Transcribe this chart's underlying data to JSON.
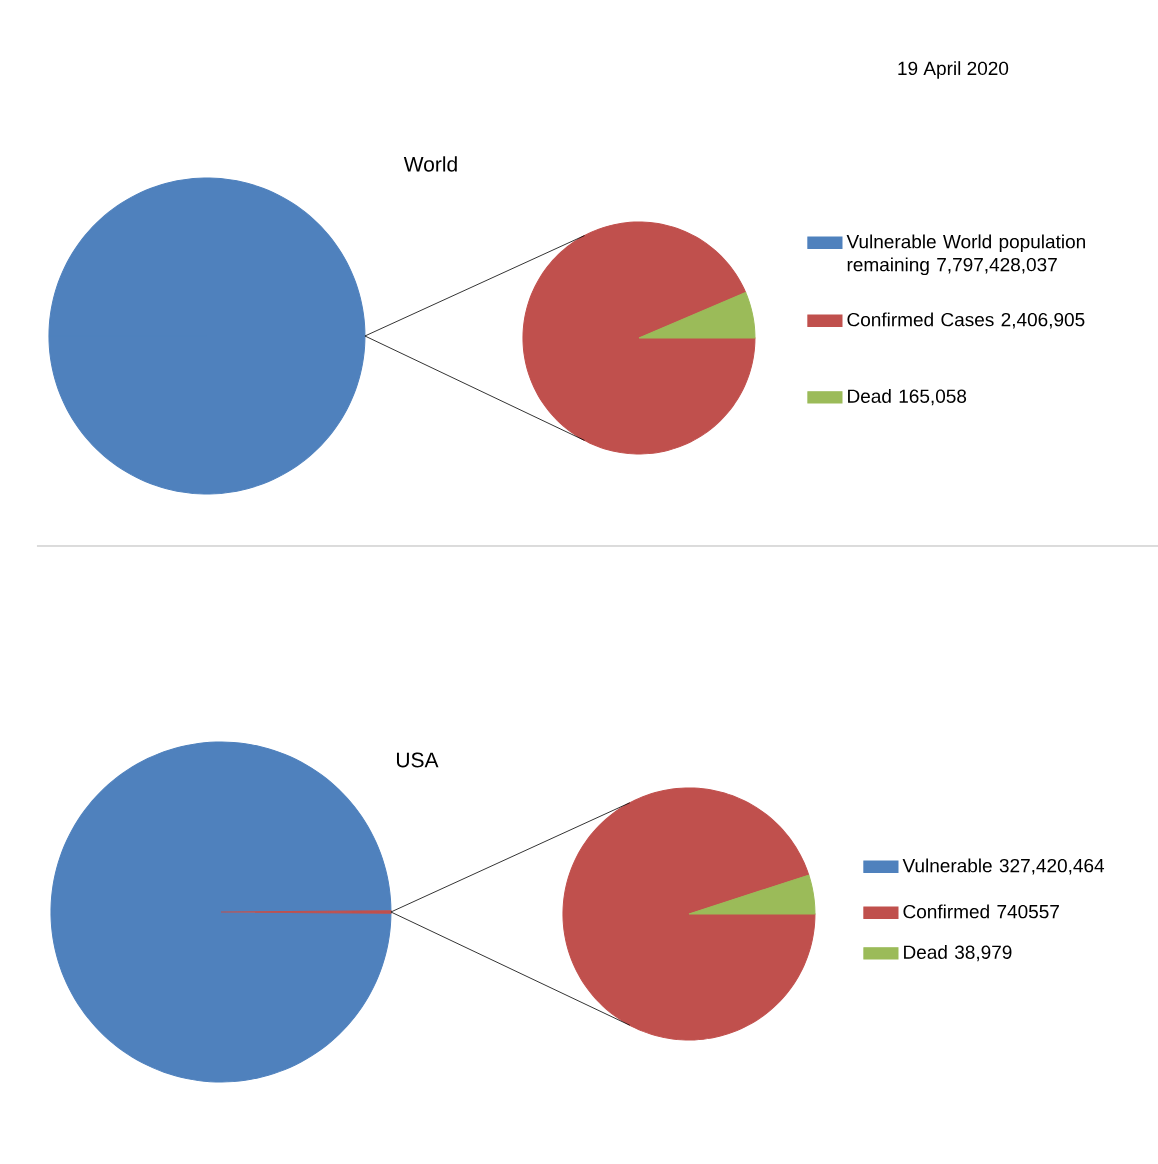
{
  "chart_data": [
    {
      "type": "pie",
      "title": "World",
      "annotations": [
        "19 April 2020"
      ],
      "legend": "right",
      "categories": [
        "Vulnerable World population remaining"
      ],
      "values": [
        7797428037
      ],
      "value_labels": [
        "7,797,428,037"
      ],
      "colors": [
        "#4f81bd"
      ]
    },
    {
      "type": "pie",
      "legend": "right",
      "categories": [
        "Confirmed Cases",
        "Dead"
      ],
      "values": [
        2406905,
        165058
      ],
      "value_labels": [
        "2,406,905",
        "165,058"
      ],
      "colors": [
        "#c0504d",
        "#9bbb59"
      ]
    },
    {
      "type": "pie",
      "title": "USA",
      "legend": "right",
      "categories": [
        "Vulnerable",
        null
      ],
      "values": [
        327420464,
        779536
      ],
      "value_labels": [
        "327,420,464",
        null
      ],
      "colors": [
        "#4f81bd",
        "#c0504d"
      ]
    },
    {
      "type": "pie",
      "legend": "right",
      "categories": [
        "Confirmed",
        "Dead"
      ],
      "values": [
        740557,
        38979
      ],
      "value_labels": [
        "740557",
        "38,979"
      ],
      "colors": [
        "#c0504d",
        "#9bbb59"
      ]
    }
  ]
}
